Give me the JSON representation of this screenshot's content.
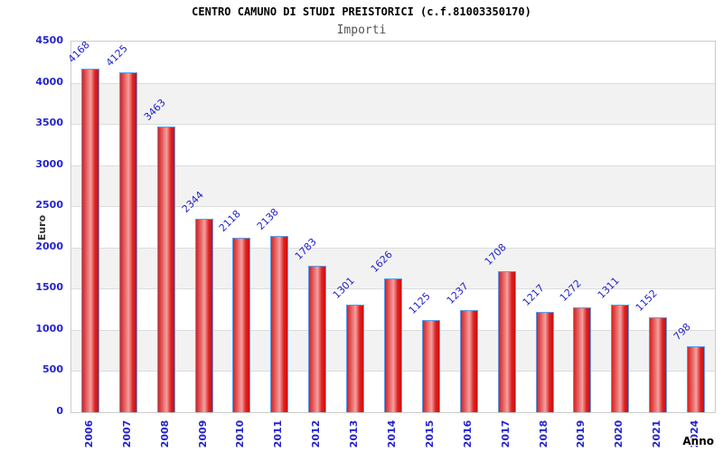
{
  "chart_data": {
    "type": "bar",
    "title": "CENTRO CAMUNO DI STUDI PREISTORICI (c.f.81003350170)",
    "subtitle": "Importi",
    "xlabel": "Anno",
    "ylabel": "Euro",
    "categories": [
      "2006",
      "2007",
      "2008",
      "2009",
      "2010",
      "2011",
      "2012",
      "2013",
      "2014",
      "2015",
      "2016",
      "2017",
      "2018",
      "2019",
      "2020",
      "2021",
      "2024"
    ],
    "values": [
      4168,
      4125,
      3463,
      2344,
      2118,
      2138,
      1783,
      1301,
      1626,
      1125,
      1237,
      1708,
      1217,
      1272,
      1311,
      1152,
      798
    ],
    "ylim": [
      0,
      4500
    ],
    "ytick_step": 500,
    "yticks": [
      0,
      500,
      1000,
      1500,
      2000,
      2500,
      3000,
      3500,
      4000,
      4500
    ],
    "legend": "none",
    "grid": "horizontal-bands-alternating",
    "colors": {
      "label_blue": "#2323cf",
      "bar_border_blue": "#5e9ce6",
      "bar_red_edge": "#c81010",
      "bar_red_mid": "#f4a0a0",
      "band_gray": "#f2f2f2",
      "band_white": "#ffffff",
      "grid_line": "#dcdcdc",
      "plot_border": "#cccccc",
      "title_color": "#000000",
      "subtitle_color": "#555555",
      "axis_title_color": "#333333"
    }
  }
}
